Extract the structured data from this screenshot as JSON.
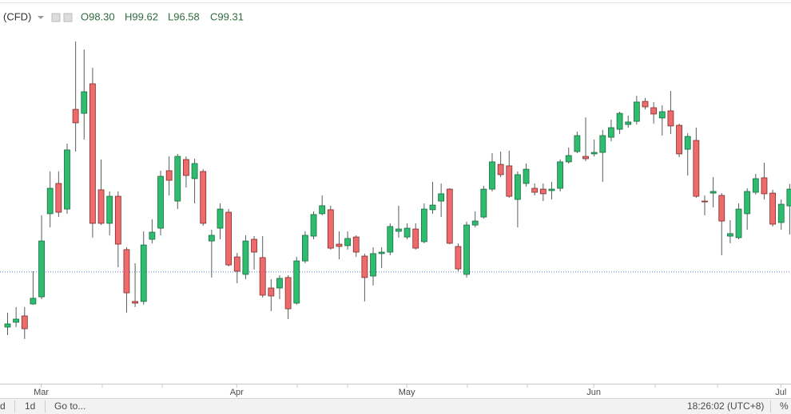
{
  "header": {
    "symbol": "(CFD)",
    "ohlc_labels": [
      "O98.30",
      "H99.62",
      "L96.58",
      "C99.31"
    ]
  },
  "chart_data": {
    "type": "candlestick",
    "ylim": [
      86.69,
      110.69
    ],
    "up_color": "#2ebd6f",
    "down_color": "#ef6a6a",
    "reference_line": 94.33,
    "x_labels": [
      {
        "index": 4,
        "label": "Mar"
      },
      {
        "index": 27,
        "label": "Apr"
      },
      {
        "index": 47,
        "label": "May"
      },
      {
        "index": 69,
        "label": "Jun"
      },
      {
        "index": 91,
        "label": "Jul"
      }
    ],
    "ohlc": [
      [
        91.01,
        91.87,
        90.53,
        91.2
      ],
      [
        91.3,
        92.21,
        91.01,
        91.49
      ],
      [
        91.68,
        92.21,
        90.29,
        90.91
      ],
      [
        92.4,
        94.37,
        92.35,
        92.74
      ],
      [
        92.83,
        97.73,
        92.69,
        96.19
      ],
      [
        97.83,
        100.37,
        97.01,
        99.36
      ],
      [
        99.65,
        100.37,
        97.63,
        97.92
      ],
      [
        98.11,
        102.05,
        97.83,
        101.67
      ],
      [
        104.11,
        108.19,
        101.57,
        103.3
      ],
      [
        103.87,
        107.71,
        102.29,
        105.17
      ],
      [
        105.65,
        106.61,
        96.39,
        97.25
      ],
      [
        99.27,
        101.09,
        97.15,
        97.25
      ],
      [
        97.25,
        99.17,
        96.53,
        98.88
      ],
      [
        98.88,
        99.17,
        94.61,
        96.0
      ],
      [
        95.67,
        95.81,
        91.87,
        93.07
      ],
      [
        92.55,
        94.85,
        92.21,
        92.45
      ],
      [
        92.55,
        96.77,
        92.35,
        95.95
      ],
      [
        96.29,
        97.49,
        96.05,
        96.72
      ],
      [
        96.96,
        100.42,
        96.53,
        100.08
      ],
      [
        100.42,
        101.28,
        98.93,
        99.84
      ],
      [
        98.59,
        101.43,
        98.11,
        101.28
      ],
      [
        101.09,
        101.28,
        99.41,
        100.13
      ],
      [
        99.94,
        101.14,
        98.45,
        100.85
      ],
      [
        100.37,
        100.51,
        97.11,
        97.25
      ],
      [
        96.19,
        96.87,
        93.99,
        96.53
      ],
      [
        96.96,
        98.45,
        96.29,
        98.11
      ],
      [
        97.92,
        98.11,
        94.66,
        94.75
      ],
      [
        95.23,
        95.47,
        93.65,
        94.37
      ],
      [
        94.18,
        96.53,
        93.89,
        96.19
      ],
      [
        96.29,
        96.48,
        94.47,
        95.52
      ],
      [
        95.19,
        96.48,
        92.79,
        92.93
      ],
      [
        93.36,
        93.89,
        91.97,
        92.88
      ],
      [
        93.36,
        94.13,
        92.69,
        93.94
      ],
      [
        93.99,
        94.13,
        91.49,
        92.11
      ],
      [
        92.45,
        95.23,
        92.35,
        94.99
      ],
      [
        94.99,
        96.77,
        94.85,
        96.53
      ],
      [
        96.48,
        97.97,
        96.29,
        97.78
      ],
      [
        97.83,
        98.93,
        97.73,
        98.31
      ],
      [
        98.07,
        98.31,
        95.67,
        95.76
      ],
      [
        96.0,
        96.77,
        95.09,
        95.86
      ],
      [
        95.91,
        96.77,
        95.67,
        96.34
      ],
      [
        96.43,
        96.53,
        95.23,
        95.52
      ],
      [
        95.28,
        95.43,
        92.55,
        93.99
      ],
      [
        94.08,
        95.81,
        93.51,
        95.43
      ],
      [
        95.43,
        95.81,
        94.56,
        95.52
      ],
      [
        95.52,
        97.25,
        95.33,
        97.06
      ],
      [
        96.77,
        98.31,
        96.39,
        96.91
      ],
      [
        96.43,
        97.25,
        96.29,
        96.96
      ],
      [
        96.91,
        97.25,
        95.67,
        95.76
      ],
      [
        96.15,
        98.45,
        96.05,
        98.11
      ],
      [
        98.07,
        99.75,
        97.83,
        98.35
      ],
      [
        98.59,
        99.65,
        97.63,
        99.03
      ],
      [
        99.31,
        99.36,
        96.0,
        96.05
      ],
      [
        95.86,
        96.05,
        94.37,
        94.51
      ],
      [
        94.18,
        97.35,
        93.99,
        97.15
      ],
      [
        97.15,
        97.97,
        97.01,
        97.39
      ],
      [
        97.63,
        99.51,
        97.54,
        99.31
      ],
      [
        99.31,
        101.47,
        99.17,
        100.95
      ],
      [
        100.8,
        101.57,
        100.03,
        100.18
      ],
      [
        100.71,
        101.62,
        98.79,
        98.88
      ],
      [
        98.69,
        100.37,
        97.01,
        100.18
      ],
      [
        99.65,
        100.85,
        99.46,
        100.51
      ],
      [
        99.36,
        99.65,
        98.93,
        99.12
      ],
      [
        99.31,
        99.65,
        98.59,
        99.03
      ],
      [
        99.22,
        99.75,
        98.69,
        99.31
      ],
      [
        99.36,
        101.09,
        99.17,
        100.95
      ],
      [
        100.95,
        101.81,
        100.85,
        101.33
      ],
      [
        101.57,
        102.77,
        101.47,
        102.53
      ],
      [
        101.28,
        103.63,
        100.99,
        101.14
      ],
      [
        101.43,
        102.29,
        101.28,
        101.52
      ],
      [
        101.52,
        102.87,
        99.75,
        102.53
      ],
      [
        102.43,
        103.49,
        102.19,
        103.01
      ],
      [
        102.91,
        103.97,
        102.63,
        103.87
      ],
      [
        103.2,
        103.73,
        103.01,
        103.35
      ],
      [
        103.39,
        104.93,
        103.2,
        104.55
      ],
      [
        104.59,
        104.79,
        104.11,
        104.26
      ],
      [
        104.21,
        104.55,
        103.25,
        103.83
      ],
      [
        103.59,
        104.35,
        102.53,
        103.97
      ],
      [
        104.02,
        105.22,
        102.63,
        103.11
      ],
      [
        103.15,
        103.25,
        101.23,
        101.43
      ],
      [
        101.71,
        102.67,
        100.13,
        102.48
      ],
      [
        102.24,
        103.01,
        98.79,
        98.88
      ],
      [
        98.59,
        98.93,
        97.73,
        98.55
      ],
      [
        99.07,
        100.03,
        98.21,
        99.17
      ],
      [
        98.93,
        99.07,
        95.33,
        97.39
      ],
      [
        96.48,
        97.44,
        96.05,
        96.63
      ],
      [
        96.39,
        98.45,
        96.29,
        98.11
      ],
      [
        97.83,
        99.36,
        96.87,
        99.17
      ],
      [
        99.12,
        100.23,
        98.98,
        99.94
      ],
      [
        99.99,
        100.9,
        98.69,
        99.03
      ],
      [
        99.07,
        99.27,
        97.06,
        97.2
      ],
      [
        97.3,
        98.69,
        96.87,
        98.4
      ],
      [
        98.3,
        99.62,
        96.58,
        99.31
      ]
    ]
  },
  "toolbar": {
    "range": "d",
    "interval": "1d",
    "goto": "Go to...",
    "clock": "18:26:02 (UTC+8)",
    "percent": "%"
  }
}
